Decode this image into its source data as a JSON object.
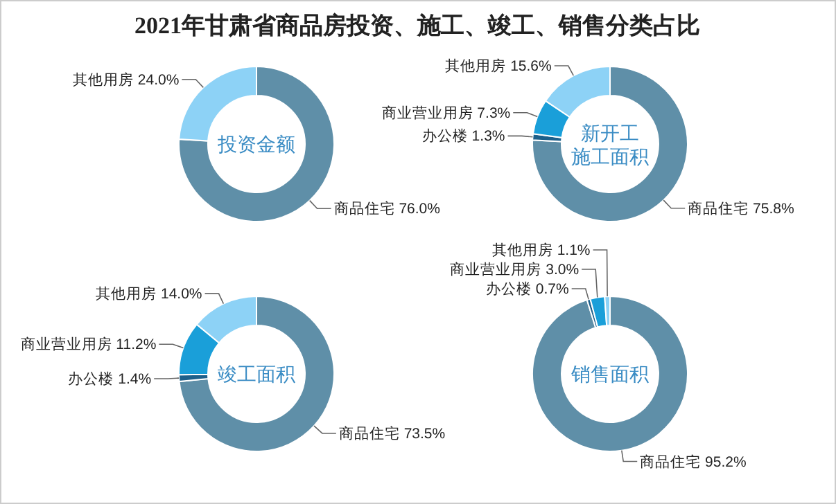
{
  "chart_data": [
    {
      "type": "donut",
      "title": "2021年甘肃省商品房投资、施工、竣工、销售分类占比",
      "subtitle": "投资金额",
      "categories": [
        "商品住宅",
        "其他用房"
      ],
      "values": [
        76.0,
        24.0
      ],
      "colors": [
        "#5f8fa8",
        "#8dd2f6"
      ],
      "value_labels": [
        "76.0%",
        "24.0%"
      ]
    },
    {
      "type": "donut",
      "subtitle": "新开工施工面积",
      "categories": [
        "商品住宅",
        "办公楼",
        "商业营业用房",
        "其他用房"
      ],
      "values": [
        75.8,
        1.3,
        7.3,
        15.6
      ],
      "colors": [
        "#5f8fa8",
        "#1d5f8a",
        "#1a9fd9",
        "#8dd2f6"
      ],
      "value_labels": [
        "75.8%",
        "1.3%",
        "7.3%",
        "15.6%"
      ]
    },
    {
      "type": "donut",
      "subtitle": "竣工面积",
      "categories": [
        "商品住宅",
        "办公楼",
        "商业营业用房",
        "其他用房"
      ],
      "values": [
        73.5,
        1.4,
        11.2,
        14.0
      ],
      "colors": [
        "#5f8fa8",
        "#1d5f8a",
        "#1a9fd9",
        "#8dd2f6"
      ],
      "value_labels": [
        "73.5%",
        "1.4%",
        "11.2%",
        "14.0%"
      ]
    },
    {
      "type": "donut",
      "subtitle": "销售面积",
      "categories": [
        "商品住宅",
        "办公楼",
        "商业营业用房",
        "其他用房"
      ],
      "values": [
        95.2,
        0.7,
        3.0,
        1.1
      ],
      "colors": [
        "#5f8fa8",
        "#1d5f8a",
        "#1a9fd9",
        "#8dd2f6"
      ],
      "value_labels": [
        "95.2%",
        "0.7%",
        "3.0%",
        "1.1%"
      ]
    }
  ]
}
